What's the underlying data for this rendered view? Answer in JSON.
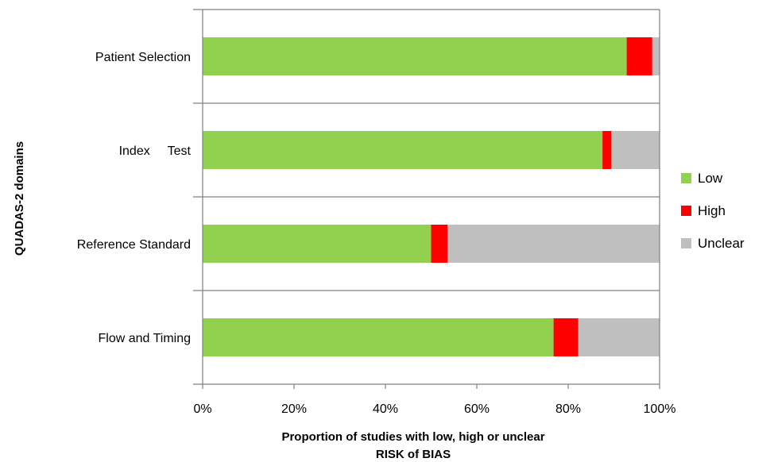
{
  "chart_data": {
    "type": "bar",
    "orientation": "horizontal",
    "stacked": "percent",
    "categories": [
      "Patient Selection",
      "Index     Test",
      "Reference Standard",
      "Flow and Timing"
    ],
    "series": [
      {
        "name": "Low",
        "values": [
          92.8,
          87.5,
          50.0,
          76.8
        ]
      },
      {
        "name": "High",
        "values": [
          5.6,
          1.9,
          3.6,
          5.4
        ]
      },
      {
        "name": "Unclear",
        "values": [
          1.6,
          10.6,
          46.4,
          17.8
        ]
      }
    ],
    "colors": {
      "Low": "#92d050",
      "High": "#ff0000",
      "Unclear": "#bfbfbf"
    },
    "xlabel_line1": "Proportion of studies with low, high or unclear",
    "xlabel_line2": "RISK of BIAS",
    "ylabel": "QUADAS-2 domains",
    "xlim": [
      0,
      100
    ],
    "xticks": [
      0,
      20,
      40,
      60,
      80,
      100
    ],
    "xtick_labels": [
      "0%",
      "20%",
      "40%",
      "60%",
      "80%",
      "100%"
    ],
    "legend_position": "right"
  }
}
